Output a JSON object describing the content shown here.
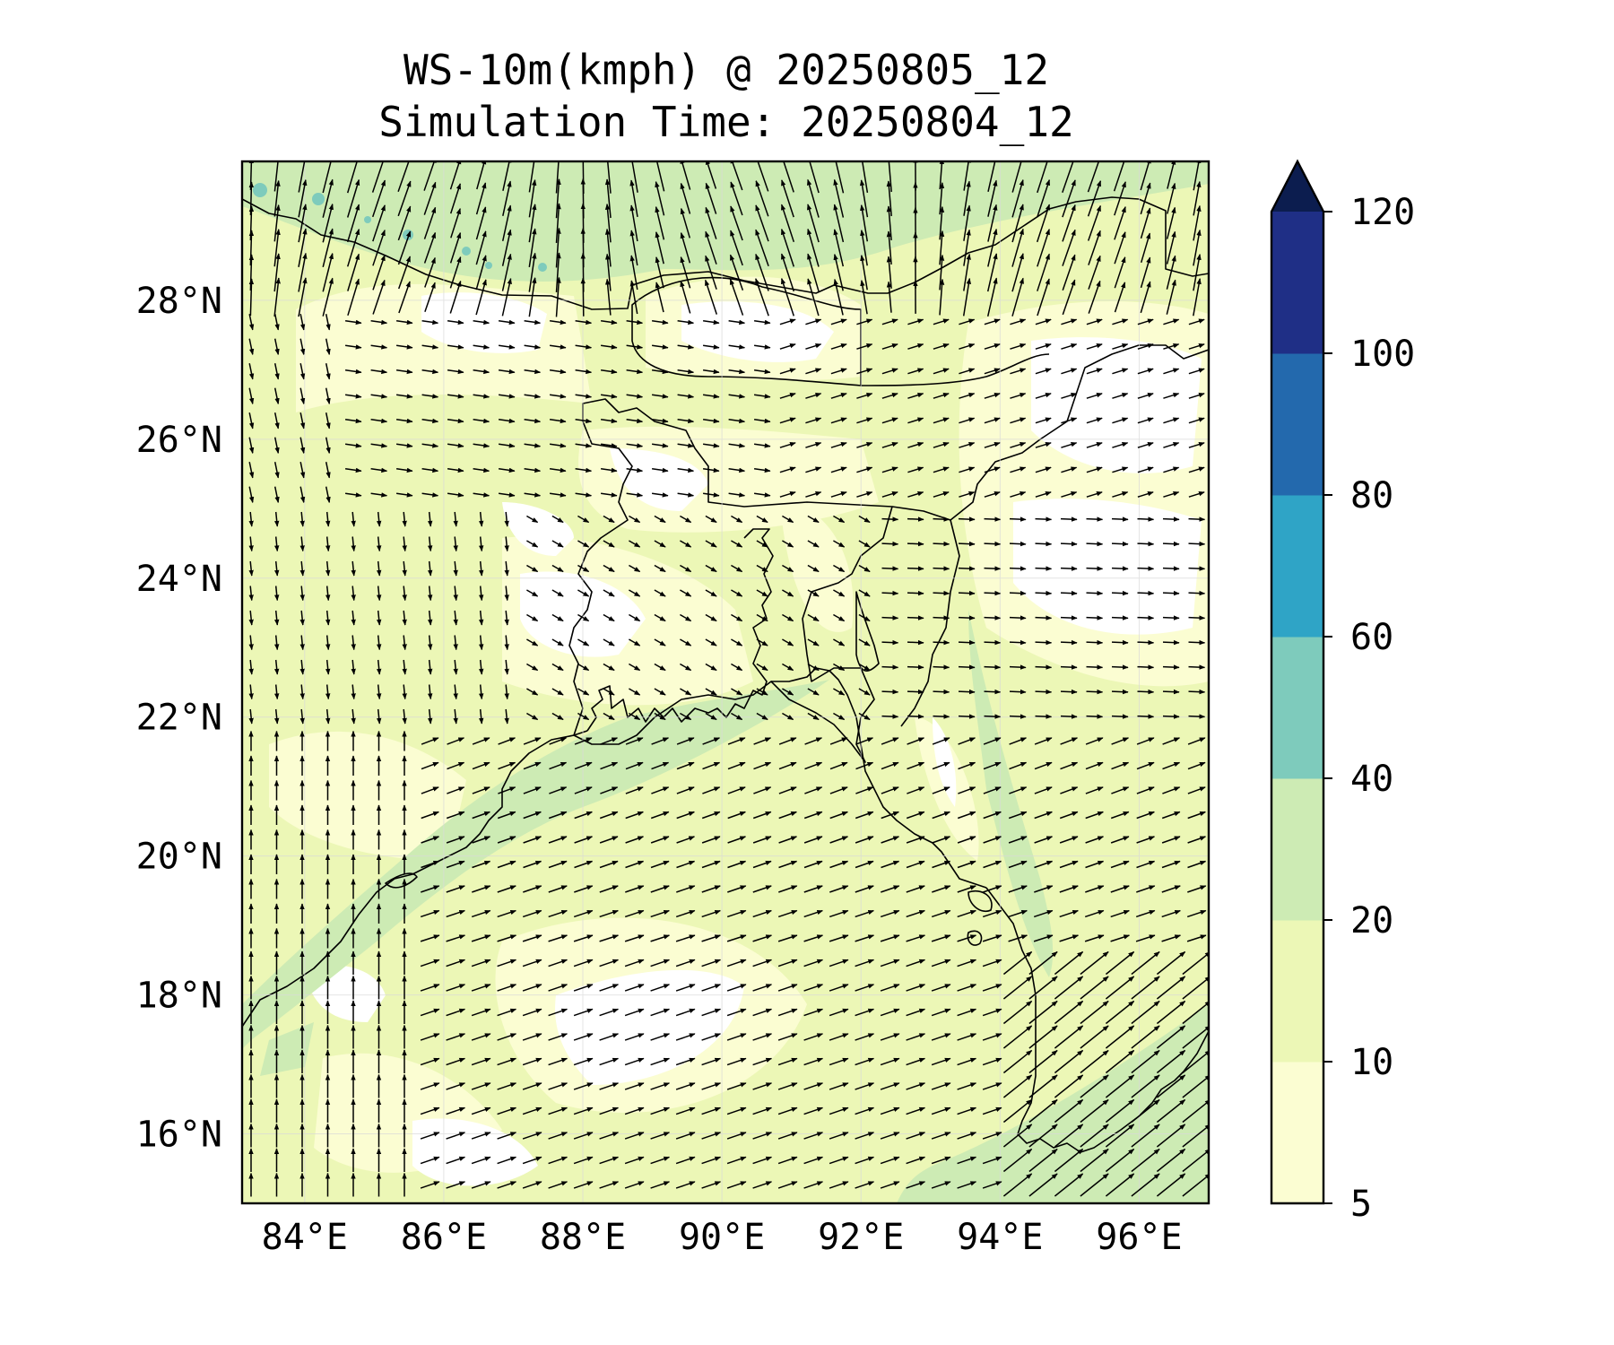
{
  "title": "WS-10m(kmph) @ 20250805_12",
  "subtitle": "Simulation Time: 20250804_12",
  "x_ticks": [
    "84°E",
    "86°E",
    "88°E",
    "90°E",
    "92°E",
    "94°E",
    "96°E"
  ],
  "y_ticks": [
    "28°N",
    "26°N",
    "24°N",
    "22°N",
    "20°N",
    "18°N",
    "16°N"
  ],
  "colorbar": {
    "labels": [
      "5",
      "10",
      "20",
      "40",
      "60",
      "80",
      "100",
      "120"
    ],
    "colors": [
      "#fbfdd2",
      "#ecf7b6",
      "#cdebb4",
      "#7ecbbc",
      "#2fa4c6",
      "#2369ad",
      "#1f2f86",
      "#0c1d4f"
    ],
    "extend": "max"
  },
  "chart_data": {
    "type": "heatmap",
    "title": "WS-10m(kmph) @ 20250805_12",
    "subtitle": "Simulation Time: 20250804_12",
    "variable": "10 m wind speed (kmph) with wind direction vectors",
    "lon_range": [
      83.1,
      97.0
    ],
    "lat_range": [
      15.0,
      30.0
    ],
    "levels": [
      5,
      10,
      20,
      40,
      60,
      80,
      100,
      120
    ],
    "grid": true,
    "colorbar_position": "right"
  }
}
